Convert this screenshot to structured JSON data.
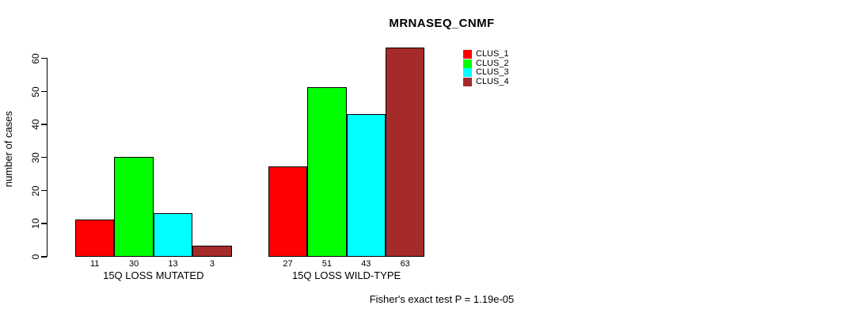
{
  "chart_data": {
    "type": "bar",
    "title": "MRNASEQ_CNMF",
    "ylabel": "number of cases",
    "xlabel": "",
    "categories": [
      "15Q LOSS MUTATED",
      "15Q LOSS WILD-TYPE"
    ],
    "series": [
      {
        "name": "CLUS_1",
        "color": "#FF0000",
        "values": [
          11,
          27
        ]
      },
      {
        "name": "CLUS_2",
        "color": "#00FF00",
        "values": [
          30,
          51
        ]
      },
      {
        "name": "CLUS_3",
        "color": "#00FFFF",
        "values": [
          13,
          43
        ]
      },
      {
        "name": "CLUS_4",
        "color": "#A52A2A",
        "values": [
          3,
          63
        ]
      }
    ],
    "bar_value_labels": [
      [
        11,
        30,
        13,
        3
      ],
      [
        27,
        51,
        43,
        63
      ]
    ],
    "yticks": [
      0,
      10,
      20,
      30,
      40,
      50,
      60
    ],
    "ylim": [
      0,
      63
    ],
    "grid": false,
    "legend_position": "top-right-inside",
    "legend_entries": [
      "CLUS_1",
      "CLUS_2",
      "CLUS_3",
      "CLUS_4"
    ],
    "annotation": "Fisher's exact test P = 1.19e-05"
  }
}
